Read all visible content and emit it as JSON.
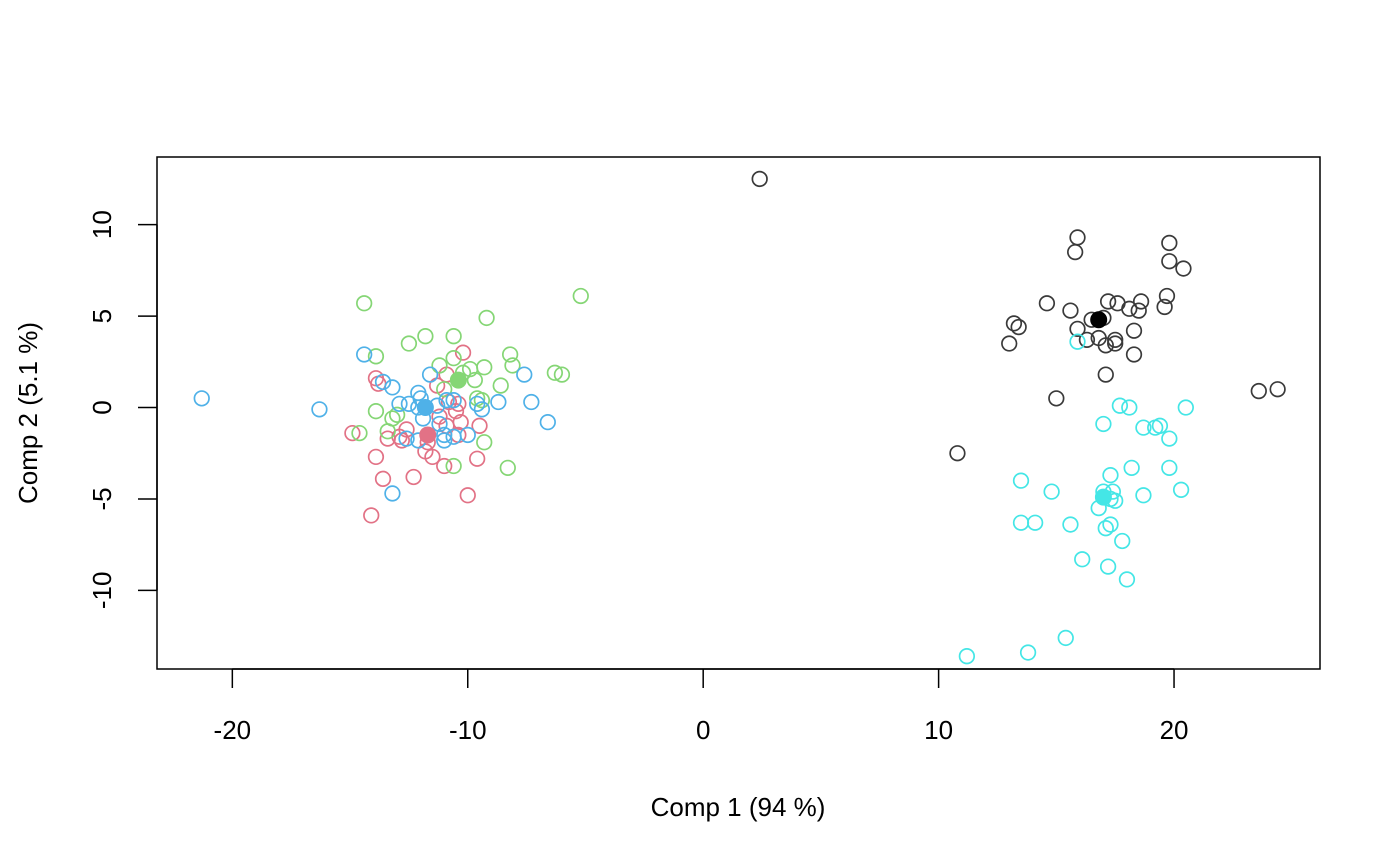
{
  "chart_data": {
    "type": "scatter",
    "title": "",
    "xlabel": "Comp 1 (94 %)",
    "ylabel": "Comp 2 (5.1 %)",
    "xlim": [
      -23.2,
      26.2
    ],
    "ylim": [
      -14.3,
      13.7
    ],
    "x_ticks": [
      -20,
      -10,
      0,
      10,
      20
    ],
    "y_ticks": [
      -10,
      -5,
      0,
      5,
      10
    ],
    "grid": false,
    "legend": "none",
    "marker": "open-circle",
    "series": [
      {
        "color": "#3a3a3a",
        "centroid": [
          16.8,
          4.8
        ],
        "points": [
          [
            2.4,
            12.5
          ],
          [
            15.9,
            9.3
          ],
          [
            15.8,
            8.5
          ],
          [
            19.8,
            9.0
          ],
          [
            19.8,
            8.0
          ],
          [
            20.4,
            7.6
          ],
          [
            19.7,
            6.1
          ],
          [
            19.6,
            5.5
          ],
          [
            18.6,
            5.8
          ],
          [
            18.5,
            5.3
          ],
          [
            18.1,
            5.4
          ],
          [
            17.6,
            5.7
          ],
          [
            17.2,
            5.8
          ],
          [
            15.6,
            5.3
          ],
          [
            14.6,
            5.7
          ],
          [
            13.2,
            4.6
          ],
          [
            13.4,
            4.4
          ],
          [
            16.5,
            4.8
          ],
          [
            17.0,
            4.9
          ],
          [
            15.9,
            4.3
          ],
          [
            16.3,
            3.7
          ],
          [
            16.8,
            3.8
          ],
          [
            17.1,
            3.4
          ],
          [
            17.5,
            3.5
          ],
          [
            17.5,
            3.7
          ],
          [
            18.3,
            4.2
          ],
          [
            18.3,
            2.9
          ],
          [
            13.0,
            3.5
          ],
          [
            17.1,
            1.8
          ],
          [
            15.0,
            0.5
          ],
          [
            23.6,
            0.9
          ],
          [
            24.4,
            1.0
          ],
          [
            10.8,
            -2.5
          ]
        ]
      },
      {
        "color": "#e27286",
        "centroid": [
          -11.7,
          -1.5
        ],
        "points": [
          [
            -10.2,
            3.0
          ],
          [
            -10.9,
            1.8
          ],
          [
            -11.3,
            1.2
          ],
          [
            -13.9,
            1.6
          ],
          [
            -13.8,
            1.3
          ],
          [
            -10.4,
            0.2
          ],
          [
            -10.5,
            -0.2
          ],
          [
            -10.8,
            0.3
          ],
          [
            -11.2,
            -0.5
          ],
          [
            -10.9,
            -1.0
          ],
          [
            -10.3,
            -0.8
          ],
          [
            -9.5,
            -1.0
          ],
          [
            -10.4,
            -1.5
          ],
          [
            -12.6,
            -1.2
          ],
          [
            -12.9,
            -1.6
          ],
          [
            -12.8,
            -1.8
          ],
          [
            -13.4,
            -1.7
          ],
          [
            -14.9,
            -1.4
          ],
          [
            -11.7,
            -1.9
          ],
          [
            -11.8,
            -2.4
          ],
          [
            -11.5,
            -2.7
          ],
          [
            -13.9,
            -2.7
          ],
          [
            -11.0,
            -3.2
          ],
          [
            -9.6,
            -2.8
          ],
          [
            -13.6,
            -3.9
          ],
          [
            -12.3,
            -3.8
          ],
          [
            -10.0,
            -4.8
          ],
          [
            -14.1,
            -5.9
          ]
        ]
      },
      {
        "color": "#85d675",
        "centroid": [
          -10.4,
          1.5
        ],
        "points": [
          [
            -5.2,
            6.1
          ],
          [
            -14.4,
            5.7
          ],
          [
            -9.2,
            4.9
          ],
          [
            -11.8,
            3.9
          ],
          [
            -10.6,
            3.9
          ],
          [
            -12.5,
            3.5
          ],
          [
            -13.9,
            2.8
          ],
          [
            -10.6,
            2.7
          ],
          [
            -8.2,
            2.9
          ],
          [
            -8.1,
            2.3
          ],
          [
            -11.2,
            2.3
          ],
          [
            -9.9,
            2.1
          ],
          [
            -9.3,
            2.2
          ],
          [
            -6.3,
            1.9
          ],
          [
            -6.0,
            1.8
          ],
          [
            -10.2,
            1.9
          ],
          [
            -9.7,
            1.5
          ],
          [
            -8.6,
            1.2
          ],
          [
            -11.0,
            1.0
          ],
          [
            -9.4,
            0.4
          ],
          [
            -9.6,
            0.5
          ],
          [
            -13.9,
            -0.2
          ],
          [
            -13.0,
            -0.4
          ],
          [
            -13.2,
            -0.6
          ],
          [
            -14.6,
            -1.4
          ],
          [
            -13.4,
            -1.3
          ],
          [
            -9.3,
            -1.9
          ],
          [
            -10.6,
            -3.2
          ],
          [
            -8.3,
            -3.3
          ]
        ]
      },
      {
        "color": "#4fb1e8",
        "centroid": [
          -11.8,
          0.0
        ],
        "points": [
          [
            -21.3,
            0.5
          ],
          [
            -16.3,
            -0.1
          ],
          [
            -14.4,
            2.9
          ],
          [
            -13.6,
            1.4
          ],
          [
            -13.2,
            1.1
          ],
          [
            -11.6,
            1.8
          ],
          [
            -12.1,
            0.8
          ],
          [
            -12.0,
            0.5
          ],
          [
            -12.5,
            0.2
          ],
          [
            -12.9,
            0.2
          ],
          [
            -12.1,
            0.0
          ],
          [
            -11.3,
            0.1
          ],
          [
            -10.9,
            0.4
          ],
          [
            -10.6,
            0.4
          ],
          [
            -9.6,
            0.2
          ],
          [
            -9.4,
            -0.1
          ],
          [
            -8.7,
            0.3
          ],
          [
            -7.6,
            1.8
          ],
          [
            -7.3,
            0.3
          ],
          [
            -6.6,
            -0.8
          ],
          [
            -11.9,
            -0.6
          ],
          [
            -11.2,
            -0.9
          ],
          [
            -11.0,
            -1.5
          ],
          [
            -10.6,
            -1.6
          ],
          [
            -10.0,
            -1.5
          ],
          [
            -11.0,
            -1.8
          ],
          [
            -12.1,
            -1.8
          ],
          [
            -12.6,
            -1.7
          ],
          [
            -13.2,
            -4.7
          ]
        ]
      },
      {
        "color": "#44e6e6",
        "centroid": [
          17.0,
          -4.9
        ],
        "points": [
          [
            15.9,
            3.6
          ],
          [
            17.7,
            0.1
          ],
          [
            18.1,
            0.0
          ],
          [
            20.5,
            0.0
          ],
          [
            17.0,
            -0.9
          ],
          [
            18.7,
            -1.1
          ],
          [
            19.2,
            -1.1
          ],
          [
            19.4,
            -1.0
          ],
          [
            19.8,
            -1.7
          ],
          [
            18.2,
            -3.3
          ],
          [
            19.8,
            -3.3
          ],
          [
            17.3,
            -3.7
          ],
          [
            13.5,
            -4.0
          ],
          [
            14.8,
            -4.6
          ],
          [
            17.0,
            -4.6
          ],
          [
            17.4,
            -4.6
          ],
          [
            17.3,
            -5.0
          ],
          [
            17.5,
            -5.1
          ],
          [
            18.7,
            -4.8
          ],
          [
            20.3,
            -4.5
          ],
          [
            16.8,
            -5.5
          ],
          [
            13.5,
            -6.3
          ],
          [
            14.1,
            -6.3
          ],
          [
            15.6,
            -6.4
          ],
          [
            17.3,
            -6.4
          ],
          [
            17.1,
            -6.6
          ],
          [
            17.8,
            -7.3
          ],
          [
            16.1,
            -8.3
          ],
          [
            17.2,
            -8.7
          ],
          [
            18.0,
            -9.4
          ],
          [
            15.4,
            -12.6
          ],
          [
            13.8,
            -13.4
          ],
          [
            11.2,
            -13.6
          ]
        ]
      }
    ]
  }
}
